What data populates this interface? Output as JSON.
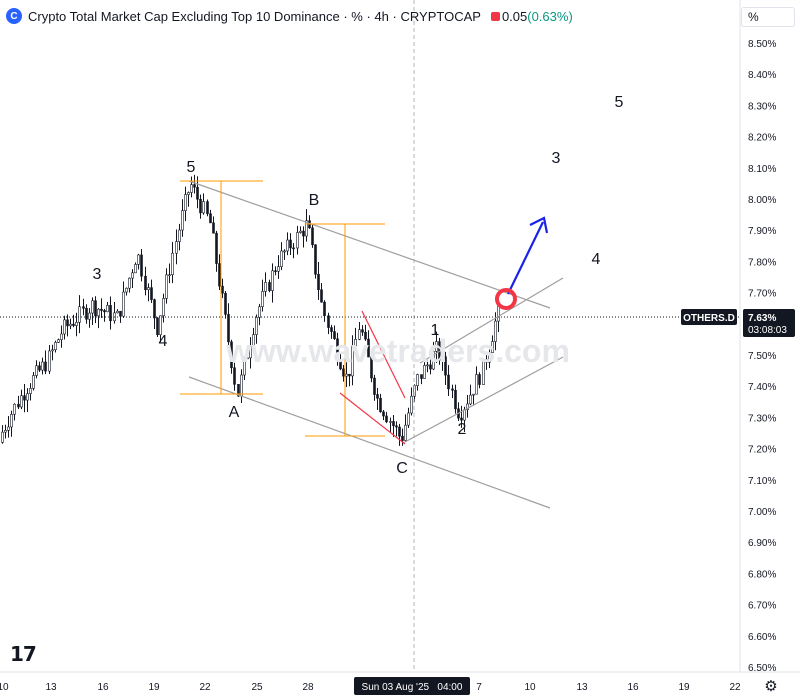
{
  "header": {
    "logo_glyph": "C",
    "title": "Crypto Total Market Cap Excluding Top 10 Dominance",
    "sep1": "·",
    "unit": "%",
    "sep2": "·",
    "interval": "4h",
    "sep3": "·",
    "exchange": "CRYPTOCAP",
    "value": "0.05",
    "change": "(0.63%)"
  },
  "scale_unit_label": "%",
  "watermark": "www.wavetraders.com",
  "tv_logo": "17",
  "icons": {
    "settings": "gear-icon",
    "logo": "tradingview-logo-icon"
  },
  "colors": {
    "up": "#089981",
    "down": "#f23645",
    "candle": "#131722",
    "channel": "#9e9e9e",
    "fib": "#ff9800",
    "wedge": "#f23645",
    "arrow": "#1922e6",
    "target": "#f23645",
    "tag_bg": "#131722"
  },
  "chart_data": {
    "type": "candlestick",
    "symbol": "OTHERS.D",
    "y_unit": "%",
    "ylim": [
      6.465,
      8.59
    ],
    "y_ticks": [
      "8.50%",
      "8.40%",
      "8.30%",
      "8.20%",
      "8.10%",
      "8.00%",
      "7.90%",
      "7.80%",
      "7.70%",
      "7.60%",
      "7.50%",
      "7.40%",
      "7.30%",
      "7.20%",
      "7.10%",
      "7.00%",
      "6.90%",
      "6.80%",
      "6.70%",
      "6.60%",
      "6.50%"
    ],
    "x_ticks": [
      "10",
      "13",
      "16",
      "19",
      "22",
      "25",
      "28",
      "7",
      "10",
      "13",
      "16",
      "19",
      "22"
    ],
    "x_highlight": "Sun 03 Aug '25   04:00",
    "last_price_tag": {
      "symbol": "OTHERS.D",
      "value": "7.63%",
      "countdown": "03:08:03",
      "price": 7.63
    },
    "wave_labels": [
      "3",
      "4",
      "5",
      "B",
      "A",
      "C",
      "1",
      "2",
      "3",
      "4",
      "5"
    ],
    "key_levels": {
      "wave5_high": 8.05,
      "wave_A_low": 7.37,
      "wave_B_high": 7.92,
      "wave_C_low": 7.23,
      "wave1_high": 7.52,
      "wave2_low": 7.31,
      "current": 7.63
    },
    "grid": false
  }
}
